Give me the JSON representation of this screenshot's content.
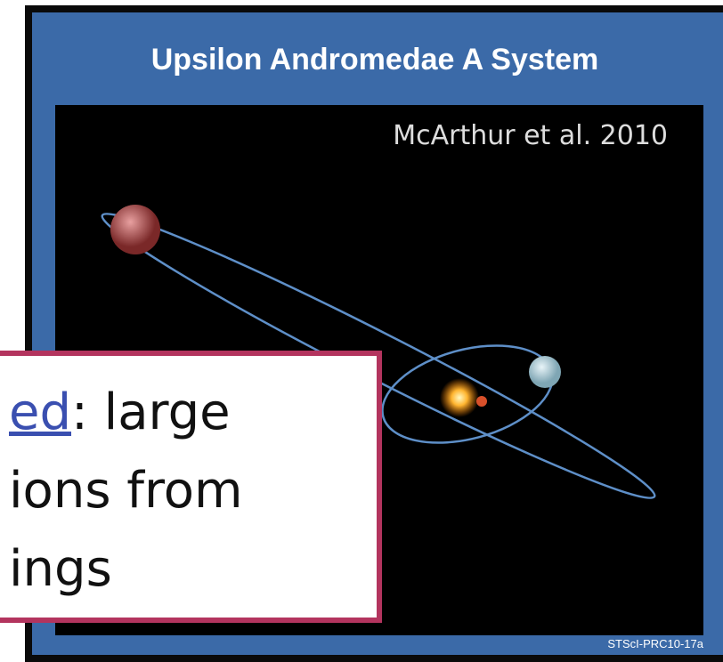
{
  "slide": {
    "image": {
      "title": "Upsilon Andromedae A System",
      "citation": "McArthur et al. 2010",
      "credit": "STScI-PRC10-17a"
    },
    "callout": {
      "link": "ed",
      "lines": [
        ": large",
        "ions from",
        "ings"
      ]
    }
  }
}
